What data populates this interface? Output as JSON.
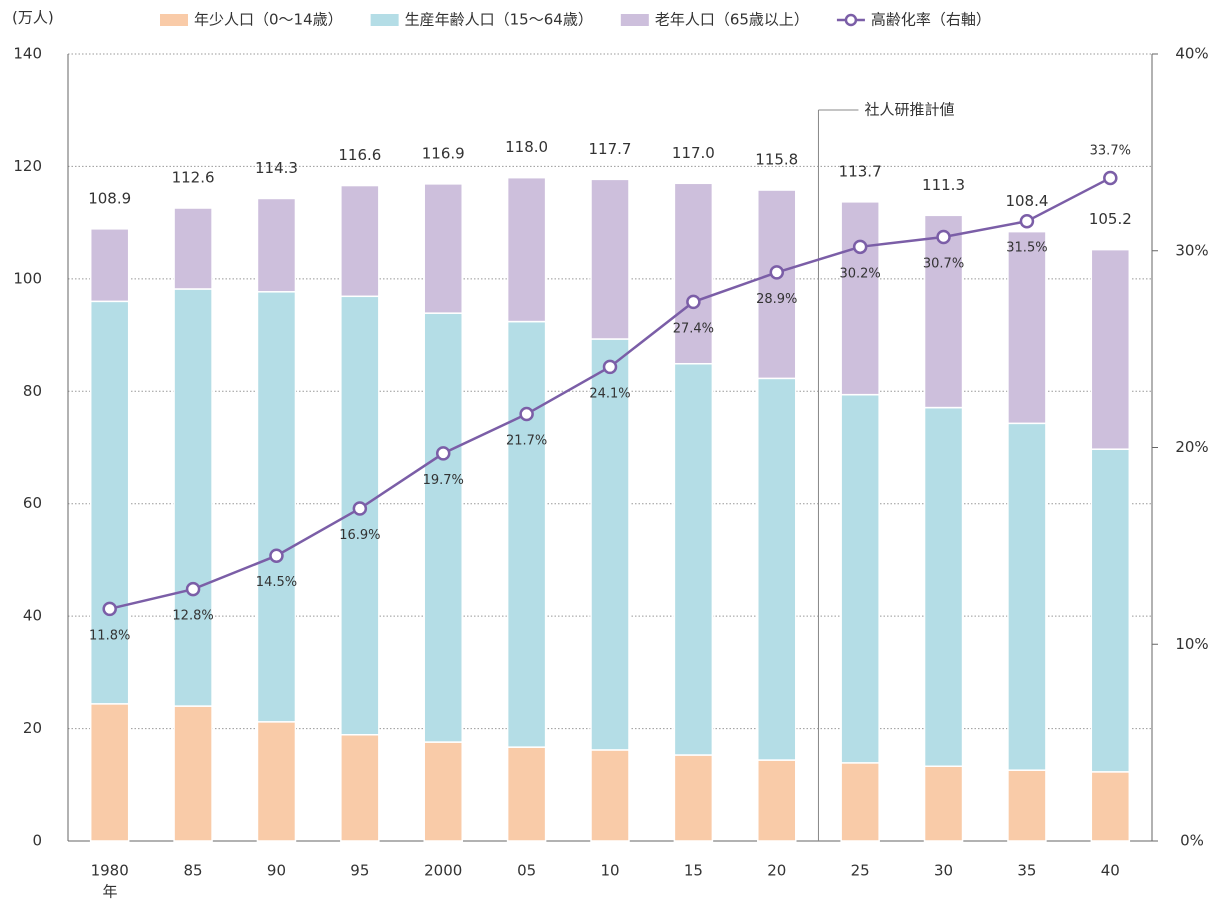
{
  "chart_data": {
    "type": "bar",
    "stacked": true,
    "y_unit_label": "(万人)",
    "x_unit_label": "年",
    "annotation": "社人研推計値",
    "categories": [
      "1980",
      "85",
      "90",
      "95",
      "2000",
      "05",
      "10",
      "15",
      "20",
      "25",
      "30",
      "35",
      "40"
    ],
    "totals": [
      108.9,
      112.6,
      114.3,
      116.6,
      116.9,
      118.0,
      117.7,
      117.0,
      115.8,
      113.7,
      111.3,
      108.4,
      105.2
    ],
    "total_labels": [
      "108.9",
      "112.6",
      "114.3",
      "116.6",
      "116.9",
      "118.0",
      "117.7",
      "117.0",
      "115.8",
      "113.7",
      "111.3",
      "108.4",
      "105.2"
    ],
    "series": [
      {
        "name": "年少人口（0～14歳）",
        "color": "#f9cba8",
        "values": [
          24.4,
          24.0,
          21.2,
          18.9,
          17.6,
          16.7,
          16.2,
          15.3,
          14.4,
          13.9,
          13.3,
          12.6,
          12.3
        ]
      },
      {
        "name": "生産年齢人口（15～64歳）",
        "color": "#b4dde6",
        "values": [
          71.6,
          74.2,
          76.5,
          78.0,
          76.3,
          75.7,
          73.1,
          69.6,
          67.9,
          65.5,
          63.8,
          61.7,
          57.4
        ]
      },
      {
        "name": "老年人口（65歳以上）",
        "color": "#cdbfdc",
        "values": [
          12.9,
          14.4,
          16.6,
          19.7,
          23.0,
          25.6,
          28.4,
          32.1,
          33.5,
          34.3,
          34.2,
          34.1,
          35.5
        ]
      },
      {
        "name": "高齢化率（右軸）",
        "color": "#7b5ea7",
        "type": "line",
        "axis": "y2",
        "values": [
          11.8,
          12.8,
          14.5,
          16.9,
          19.7,
          21.7,
          24.1,
          27.4,
          28.9,
          30.2,
          30.7,
          31.5,
          33.7
        ],
        "value_labels": [
          "11.8%",
          "12.8%",
          "14.5%",
          "16.9%",
          "19.7%",
          "21.7%",
          "24.1%",
          "27.4%",
          "28.9%",
          "30.2%",
          "30.7%",
          "31.5%",
          "33.7%"
        ]
      }
    ],
    "ylim": [
      0,
      140
    ],
    "yticks": [
      0,
      20,
      40,
      60,
      80,
      100,
      120,
      140
    ],
    "y2lim": [
      0,
      40
    ],
    "y2ticks": [
      {
        "value": 0,
        "label": "0%"
      },
      {
        "value": 10,
        "label": "10%"
      },
      {
        "value": 20,
        "label": "20%"
      },
      {
        "value": 30,
        "label": "30%"
      },
      {
        "value": 40,
        "label": "40%"
      }
    ],
    "grid": true
  }
}
